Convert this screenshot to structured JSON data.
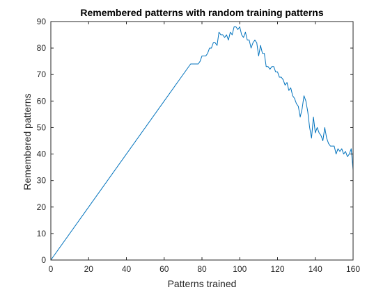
{
  "chart_data": {
    "type": "line",
    "title": "Remembered patterns with random training patterns",
    "xlabel": "Patterns trained",
    "ylabel": "Remembered patterns",
    "xlim": [
      0,
      160
    ],
    "ylim": [
      0,
      90
    ],
    "xticks": [
      0,
      20,
      40,
      60,
      80,
      100,
      120,
      140,
      160
    ],
    "yticks": [
      0,
      10,
      20,
      30,
      40,
      50,
      60,
      70,
      80,
      90
    ],
    "grid": false,
    "box": true,
    "series": [
      {
        "color": "#0072BD",
        "x": [
          0,
          74,
          75,
          78,
          79,
          80,
          82,
          83,
          84,
          85,
          86,
          87,
          88,
          89,
          90,
          91,
          92,
          93,
          94,
          95,
          96,
          97,
          98,
          99,
          100,
          101,
          102,
          103,
          104,
          105,
          106,
          107,
          108,
          109,
          110,
          111,
          112,
          113,
          114,
          115,
          116,
          117,
          118,
          119,
          120,
          121,
          122,
          123,
          124,
          125,
          126,
          127,
          128,
          129,
          130,
          131,
          132,
          133,
          134,
          135,
          136,
          137,
          138,
          139,
          140,
          141,
          142,
          143,
          144,
          145,
          146,
          147,
          148,
          149,
          150,
          151,
          152,
          153,
          154,
          155,
          156,
          157,
          158,
          159,
          160
        ],
        "y": [
          0,
          74,
          74,
          74,
          75,
          77,
          77,
          78,
          80,
          80,
          82,
          82,
          81,
          86,
          85,
          85,
          84,
          85,
          83,
          86,
          85,
          88,
          88,
          87,
          88,
          85,
          84,
          86,
          83,
          83,
          80,
          82,
          83,
          82,
          77,
          81,
          78,
          78,
          73,
          73,
          72,
          73,
          73,
          71,
          71,
          69,
          69,
          68,
          66,
          67,
          64,
          65,
          62,
          61,
          59,
          58,
          54,
          57,
          62,
          60,
          56,
          50,
          46,
          54,
          48,
          50,
          48,
          47,
          45,
          50,
          46,
          44,
          43,
          43,
          43,
          40,
          42,
          41,
          42,
          40,
          41,
          39,
          40,
          42,
          34
        ]
      }
    ]
  }
}
